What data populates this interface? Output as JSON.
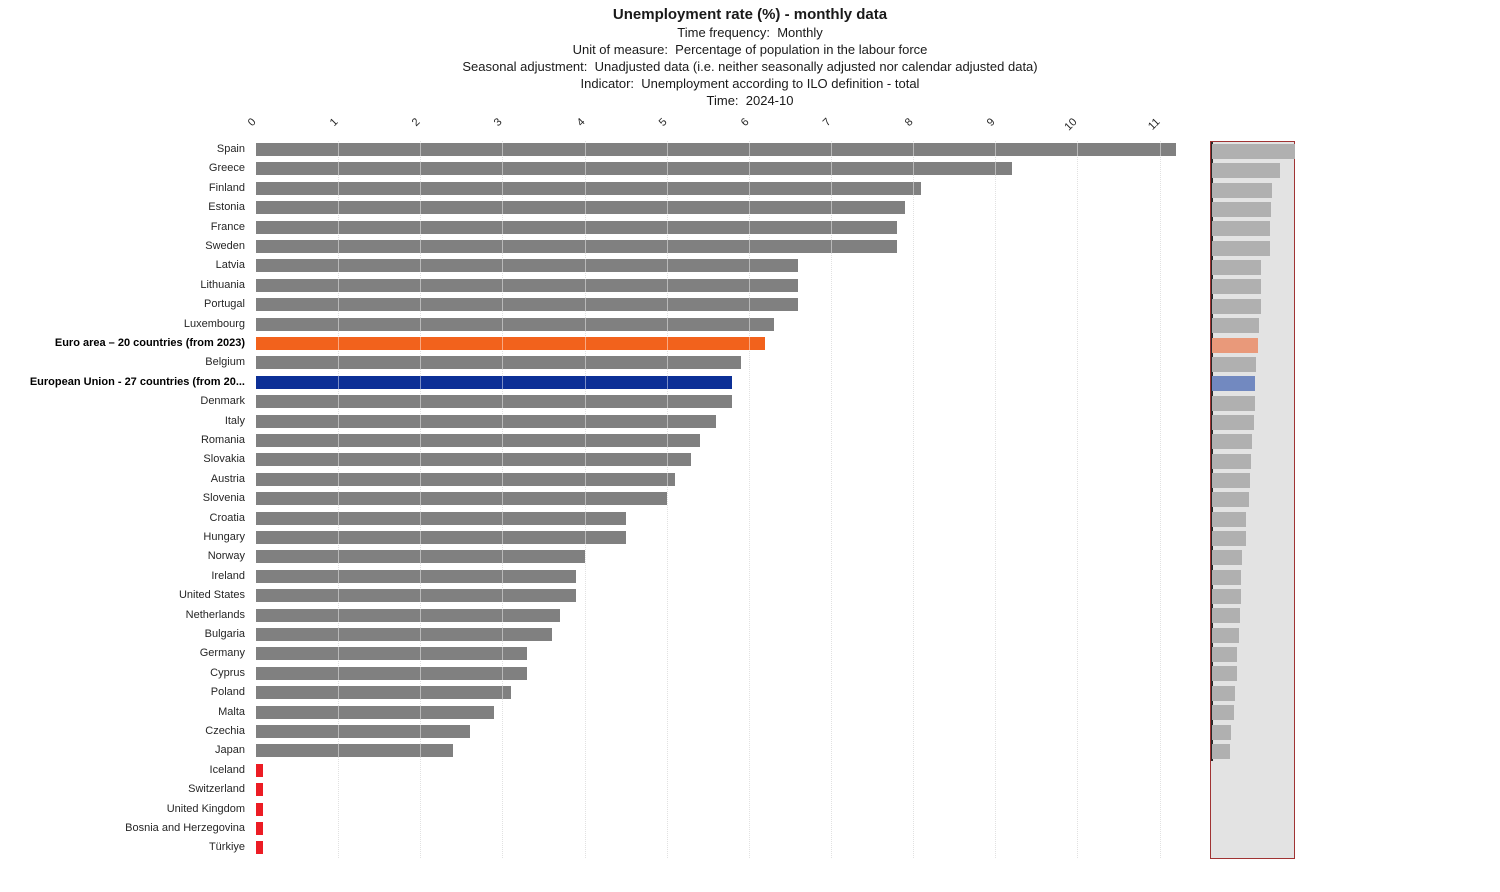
{
  "header": {
    "title": "Unemployment rate (%) - monthly data",
    "subtitles": [
      "Time frequency:  Monthly",
      "Unit of measure:  Percentage of population in the labour force",
      "Seasonal adjustment:  Unadjusted data (i.e. neither seasonally adjusted nor calendar adjusted data)",
      "Indicator:  Unemployment according to ILO definition - total",
      "Time:  2024-10"
    ]
  },
  "chart_data": {
    "type": "bar",
    "orientation": "horizontal",
    "title": "Unemployment rate (%) - monthly data",
    "xlabel": "",
    "ylabel": "",
    "xlim": [
      0,
      11.3
    ],
    "x_ticks": [
      "0",
      "1",
      "2",
      "3",
      "4",
      "5",
      "6",
      "7",
      "8",
      "9",
      "10",
      "11"
    ],
    "grid": "vertical-dotted",
    "legend": "none",
    "unit": "percent",
    "rows": [
      {
        "label": "Spain",
        "value": 11.2
      },
      {
        "label": "Greece",
        "value": 9.2
      },
      {
        "label": "Finland",
        "value": 8.1
      },
      {
        "label": "Estonia",
        "value": 7.9
      },
      {
        "label": "France",
        "value": 7.8
      },
      {
        "label": "Sweden",
        "value": 7.8
      },
      {
        "label": "Latvia",
        "value": 6.6
      },
      {
        "label": "Lithuania",
        "value": 6.6
      },
      {
        "label": "Portugal",
        "value": 6.6
      },
      {
        "label": "Luxembourg",
        "value": 6.3
      },
      {
        "label": "Euro area – 20 countries (from 2023)",
        "value": 6.2,
        "highlight": "euro_area",
        "bold": true
      },
      {
        "label": "Belgium",
        "value": 5.9
      },
      {
        "label": "European Union - 27 countries (from 20...",
        "value": 5.8,
        "highlight": "eu",
        "bold": true
      },
      {
        "label": "Denmark",
        "value": 5.8
      },
      {
        "label": "Italy",
        "value": 5.6
      },
      {
        "label": "Romania",
        "value": 5.4
      },
      {
        "label": "Slovakia",
        "value": 5.3
      },
      {
        "label": "Austria",
        "value": 5.1
      },
      {
        "label": "Slovenia",
        "value": 5.0
      },
      {
        "label": "Croatia",
        "value": 4.5
      },
      {
        "label": "Hungary",
        "value": 4.5
      },
      {
        "label": "Norway",
        "value": 4.0
      },
      {
        "label": "Ireland",
        "value": 3.9
      },
      {
        "label": "United States",
        "value": 3.9
      },
      {
        "label": "Netherlands",
        "value": 3.7
      },
      {
        "label": "Bulgaria",
        "value": 3.6
      },
      {
        "label": "Germany",
        "value": 3.3
      },
      {
        "label": "Cyprus",
        "value": 3.3
      },
      {
        "label": "Poland",
        "value": 3.1
      },
      {
        "label": "Malta",
        "value": 2.9
      },
      {
        "label": "Czechia",
        "value": 2.6
      },
      {
        "label": "Japan",
        "value": 2.4
      },
      {
        "label": "Iceland",
        "value": null,
        "no_data": true
      },
      {
        "label": "Switzerland",
        "value": null,
        "no_data": true
      },
      {
        "label": "United Kingdom",
        "value": null,
        "no_data": true
      },
      {
        "label": "Bosnia and Herzegovina",
        "value": null,
        "no_data": true
      },
      {
        "label": "Türkiye",
        "value": null,
        "no_data": true
      }
    ]
  },
  "colors": {
    "bar_default": "#808080",
    "bar_euro_area": "#f2621c",
    "bar_eu": "#0c2f96",
    "bar_no_data": "#ec1c24",
    "grid": "#c9c9c9",
    "minimap_bg": "#e3e3e3",
    "minimap_bar": "#b0b0b0",
    "minimap_euro_area": "#e9997a",
    "minimap_eu": "#7289c0",
    "minimap_border": "#a03333"
  }
}
